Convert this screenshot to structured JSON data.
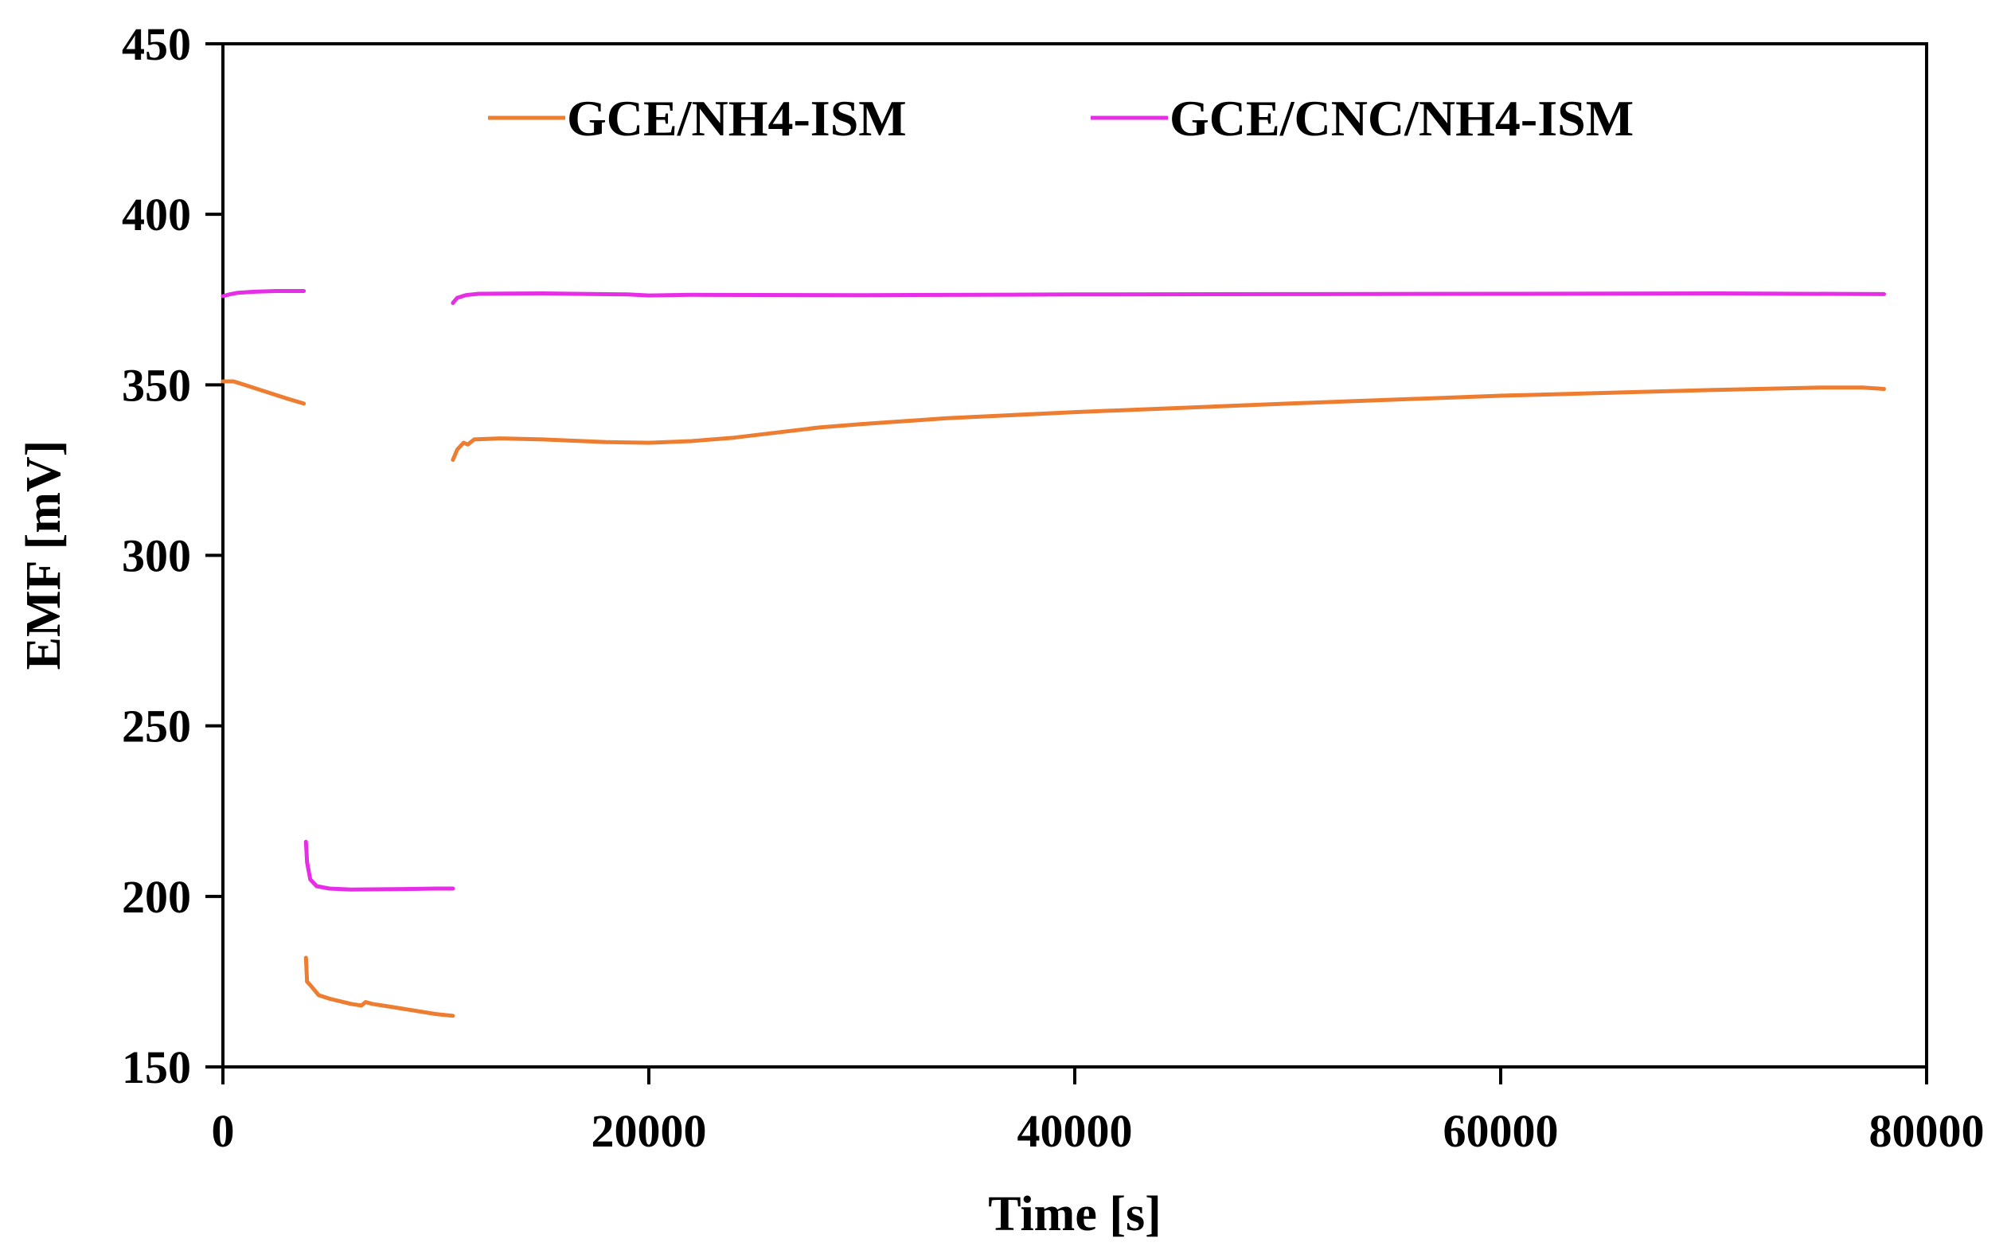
{
  "chart_data": {
    "type": "line",
    "title": "",
    "xlabel": "Time [s]",
    "ylabel": "EMF [mV]",
    "xlim": [
      0,
      80000
    ],
    "ylim": [
      150,
      450
    ],
    "x_ticks": [
      "0",
      "20000",
      "40000",
      "60000",
      "80000"
    ],
    "y_ticks": [
      "150",
      "200",
      "250",
      "300",
      "350",
      "400",
      "450"
    ],
    "grid": false,
    "legend_position": "top-center",
    "colors": {
      "GCE/NH4-ISM": "#ED7D31",
      "GCE/CNC/NH4-ISM": "#E62EE6"
    },
    "series": [
      {
        "name": "GCE/NH4-ISM",
        "color": "#ED7D31",
        "segments": [
          [
            [
              0,
              351
            ],
            [
              500,
              351
            ],
            [
              1000,
              350
            ],
            [
              2000,
              348
            ],
            [
              3000,
              346
            ],
            [
              3800,
              344.5
            ]
          ],
          [
            [
              3900,
              182
            ],
            [
              3950,
              175
            ],
            [
              4100,
              174
            ],
            [
              4500,
              171
            ],
            [
              5000,
              170
            ],
            [
              6000,
              168.5
            ],
            [
              6500,
              168
            ],
            [
              6700,
              169
            ],
            [
              7000,
              168.5
            ],
            [
              8000,
              167.5
            ],
            [
              9000,
              166.5
            ],
            [
              10000,
              165.5
            ],
            [
              10800,
              165
            ]
          ],
          [
            [
              10800,
              328
            ],
            [
              11000,
              331
            ],
            [
              11300,
              333
            ],
            [
              11500,
              332.5
            ],
            [
              11800,
              334
            ],
            [
              13000,
              334.3
            ],
            [
              15000,
              334
            ],
            [
              18000,
              333.2
            ],
            [
              20000,
              333
            ],
            [
              22000,
              333.5
            ],
            [
              24000,
              334.5
            ],
            [
              26000,
              336
            ],
            [
              28000,
              337.5
            ],
            [
              30000,
              338.5
            ],
            [
              34000,
              340.2
            ],
            [
              40000,
              342
            ],
            [
              50000,
              344.5
            ],
            [
              60000,
              346.8
            ],
            [
              70000,
              348.5
            ],
            [
              75000,
              349.2
            ],
            [
              77000,
              349.2
            ],
            [
              78000,
              348.8
            ]
          ]
        ]
      },
      {
        "name": "GCE/CNC/NH4-ISM",
        "color": "#E62EE6",
        "segments": [
          [
            [
              0,
              376
            ],
            [
              300,
              376.5
            ],
            [
              700,
              377
            ],
            [
              1500,
              377.3
            ],
            [
              2500,
              377.5
            ],
            [
              3800,
              377.5
            ]
          ],
          [
            [
              3900,
              216
            ],
            [
              3950,
              210
            ],
            [
              4100,
              205
            ],
            [
              4400,
              203
            ],
            [
              5000,
              202.3
            ],
            [
              6000,
              202
            ],
            [
              8000,
              202.1
            ],
            [
              10000,
              202.3
            ],
            [
              10800,
              202.3
            ]
          ],
          [
            [
              10800,
              374
            ],
            [
              11000,
              375.5
            ],
            [
              11400,
              376.3
            ],
            [
              12000,
              376.7
            ],
            [
              15000,
              376.8
            ],
            [
              19000,
              376.5
            ],
            [
              20000,
              376.2
            ],
            [
              22000,
              376.4
            ],
            [
              30000,
              376.3
            ],
            [
              40000,
              376.5
            ],
            [
              50000,
              376.6
            ],
            [
              60000,
              376.7
            ],
            [
              70000,
              376.8
            ],
            [
              78000,
              376.6
            ]
          ]
        ]
      }
    ]
  }
}
